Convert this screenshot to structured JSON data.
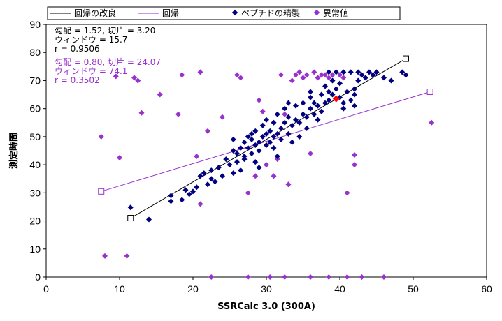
{
  "chart_data": {
    "type": "scatter",
    "xlabel": "SSRCalc 3.0 (300A)",
    "ylabel": "測定時間",
    "xlim": [
      0,
      60
    ],
    "ylim": [
      0,
      90
    ],
    "xticks": [
      "0",
      "10",
      "20",
      "30",
      "40",
      "50",
      "60"
    ],
    "yticks": [
      "0",
      "10",
      "20",
      "30",
      "40",
      "50",
      "60",
      "70",
      "80",
      "90"
    ],
    "grid": false,
    "legend_position": "top",
    "legend": {
      "regression_improved": "回帰の改良",
      "regression": "回帰",
      "refined": "ペプチドの精製",
      "outliers": "異常値"
    },
    "colors": {
      "refined": "#000080",
      "outlier": "#9932CC",
      "regression_improved": "#000000",
      "regression": "#9932CC",
      "highlight": "#FF0000"
    },
    "stats_improved": [
      "勾配 = 1.52, 切片 = 3.20",
      "ウィンドウ = 15.7",
      "r = 0.9506"
    ],
    "stats_regression": [
      "勾配 = 0.80, 切片 = 24.07",
      "ウィンドウ = 74.1",
      "r = 0.3502"
    ],
    "lines": {
      "regression_improved": [
        [
          11.5,
          21.0
        ],
        [
          49.0,
          77.8
        ]
      ],
      "regression": [
        [
          7.5,
          30.5
        ],
        [
          52.3,
          66.0
        ]
      ]
    },
    "highlight_point": [
      39.5,
      63.5
    ],
    "series": [
      {
        "name": "ペプチドの精製",
        "points": [
          [
            11.5,
            24.8
          ],
          [
            14.0,
            20.5
          ],
          [
            17.0,
            29.0
          ],
          [
            17.0,
            27.0
          ],
          [
            18.5,
            27.5
          ],
          [
            19.0,
            31.0
          ],
          [
            19.5,
            29.5
          ],
          [
            20.0,
            30.5
          ],
          [
            20.5,
            32.0
          ],
          [
            21.0,
            36.0
          ],
          [
            21.5,
            37.0
          ],
          [
            22.0,
            33.0
          ],
          [
            22.5,
            38.0
          ],
          [
            22.5,
            35.0
          ],
          [
            23.0,
            34.0
          ],
          [
            23.5,
            39.0
          ],
          [
            24.0,
            36.0
          ],
          [
            24.5,
            42.0
          ],
          [
            25.0,
            40.0
          ],
          [
            25.5,
            37.0
          ],
          [
            25.5,
            45.0
          ],
          [
            25.5,
            49.0
          ],
          [
            26.0,
            44.0
          ],
          [
            26.0,
            41.0
          ],
          [
            26.5,
            46.0
          ],
          [
            26.5,
            38.0
          ],
          [
            27.0,
            48.0
          ],
          [
            27.0,
            43.0
          ],
          [
            27.5,
            50.0
          ],
          [
            27.5,
            46.0
          ],
          [
            28.0,
            44.0
          ],
          [
            28.0,
            49.0
          ],
          [
            28.5,
            52.0
          ],
          [
            28.5,
            47.0
          ],
          [
            28.5,
            41.0
          ],
          [
            29.0,
            48.0
          ],
          [
            29.0,
            45.0
          ],
          [
            29.0,
            39.0
          ],
          [
            29.5,
            50.0
          ],
          [
            29.5,
            54.0
          ],
          [
            30.0,
            47.0
          ],
          [
            30.0,
            51.0
          ],
          [
            30.0,
            56.0
          ],
          [
            30.5,
            48.0
          ],
          [
            30.5,
            52.0
          ],
          [
            31.0,
            50.0
          ],
          [
            31.0,
            55.0
          ],
          [
            31.0,
            46.0
          ],
          [
            31.5,
            51.0
          ],
          [
            31.5,
            58.0
          ],
          [
            32.0,
            53.0
          ],
          [
            32.0,
            49.0
          ],
          [
            32.5,
            55.0
          ],
          [
            32.5,
            60.0
          ],
          [
            33.0,
            51.0
          ],
          [
            33.0,
            57.0
          ],
          [
            33.5,
            54.0
          ],
          [
            33.5,
            48.0
          ],
          [
            34.0,
            56.0
          ],
          [
            34.0,
            61.0
          ],
          [
            34.5,
            55.0
          ],
          [
            34.5,
            50.0
          ],
          [
            35.0,
            58.0
          ],
          [
            35.0,
            62.0
          ],
          [
            35.5,
            57.0
          ],
          [
            35.5,
            53.0
          ],
          [
            36.0,
            60.0
          ],
          [
            36.0,
            64.0
          ],
          [
            36.5,
            58.0
          ],
          [
            36.5,
            62.0
          ],
          [
            37.0,
            61.0
          ],
          [
            37.0,
            56.0
          ],
          [
            37.5,
            65.0
          ],
          [
            37.5,
            59.0
          ],
          [
            38.0,
            62.0
          ],
          [
            38.0,
            68.0
          ],
          [
            38.5,
            63.0
          ],
          [
            38.5,
            66.0
          ],
          [
            39.0,
            65.0
          ],
          [
            39.0,
            70.0
          ],
          [
            39.5,
            67.0
          ],
          [
            40.0,
            64.0
          ],
          [
            40.0,
            69.0
          ],
          [
            40.5,
            62.0
          ],
          [
            40.5,
            60.0
          ],
          [
            41.0,
            66.0
          ],
          [
            41.5,
            63.0
          ],
          [
            42.0,
            65.0
          ],
          [
            42.0,
            61.0
          ],
          [
            42.5,
            70.0
          ],
          [
            43.0,
            72.0
          ],
          [
            43.5,
            71.0
          ],
          [
            44.0,
            73.0
          ],
          [
            45.0,
            73.0
          ],
          [
            46.0,
            71.0
          ],
          [
            47.0,
            70.0
          ],
          [
            48.5,
            73.0
          ],
          [
            49.0,
            72.0
          ],
          [
            38.5,
            73.0
          ],
          [
            39.5,
            73.0
          ],
          [
            40.5,
            73.0
          ],
          [
            41.5,
            73.0
          ],
          [
            42.5,
            73.0
          ],
          [
            27.0,
            42.0
          ],
          [
            33.0,
            62.0
          ],
          [
            36.0,
            66.0
          ],
          [
            44.5,
            72.0
          ],
          [
            42.0,
            67.0
          ],
          [
            28.0,
            51.0
          ],
          [
            31.5,
            43.0
          ]
        ]
      },
      {
        "name": "異常値",
        "points": [
          [
            7.5,
            50.0
          ],
          [
            8.0,
            7.5
          ],
          [
            10.0,
            42.5
          ],
          [
            11.0,
            7.5
          ],
          [
            12.5,
            70.0
          ],
          [
            13.0,
            58.5
          ],
          [
            15.5,
            65.0
          ],
          [
            18.0,
            58.0
          ],
          [
            18.5,
            72.0
          ],
          [
            20.5,
            43.0
          ],
          [
            21.0,
            26.0
          ],
          [
            21.0,
            73.0
          ],
          [
            22.0,
            52.0
          ],
          [
            22.5,
            0.0
          ],
          [
            24.0,
            57.0
          ],
          [
            26.0,
            72.0
          ],
          [
            26.5,
            71.0
          ],
          [
            27.5,
            30.0
          ],
          [
            28.5,
            36.0
          ],
          [
            29.0,
            63.0
          ],
          [
            29.5,
            59.0
          ],
          [
            30.0,
            40.0
          ],
          [
            31.0,
            36.0
          ],
          [
            31.5,
            42.0
          ],
          [
            32.0,
            72.0
          ],
          [
            32.5,
            58.0
          ],
          [
            33.0,
            33.0
          ],
          [
            33.5,
            70.0
          ],
          [
            34.0,
            72.0
          ],
          [
            34.5,
            73.0
          ],
          [
            35.0,
            71.0
          ],
          [
            35.5,
            72.0
          ],
          [
            36.0,
            44.0
          ],
          [
            36.5,
            73.0
          ],
          [
            37.0,
            71.0
          ],
          [
            37.5,
            72.0
          ],
          [
            38.0,
            72.0
          ],
          [
            38.5,
            71.0
          ],
          [
            39.0,
            72.0
          ],
          [
            40.0,
            72.0
          ],
          [
            40.5,
            71.0
          ],
          [
            41.0,
            30.0
          ],
          [
            42.0,
            43.5
          ],
          [
            42.0,
            40.0
          ],
          [
            52.5,
            55.0
          ],
          [
            9.5,
            71.5
          ],
          [
            12.0,
            71.0
          ],
          [
            44.5,
            72.0
          ],
          [
            27.5,
            0.0
          ],
          [
            32.5,
            0.0
          ],
          [
            36.0,
            0.0
          ],
          [
            41.0,
            0.0
          ],
          [
            46.0,
            0.0
          ],
          [
            30.5,
            0.0
          ],
          [
            38.5,
            0.0
          ],
          [
            43.0,
            0.0
          ]
        ]
      }
    ]
  }
}
